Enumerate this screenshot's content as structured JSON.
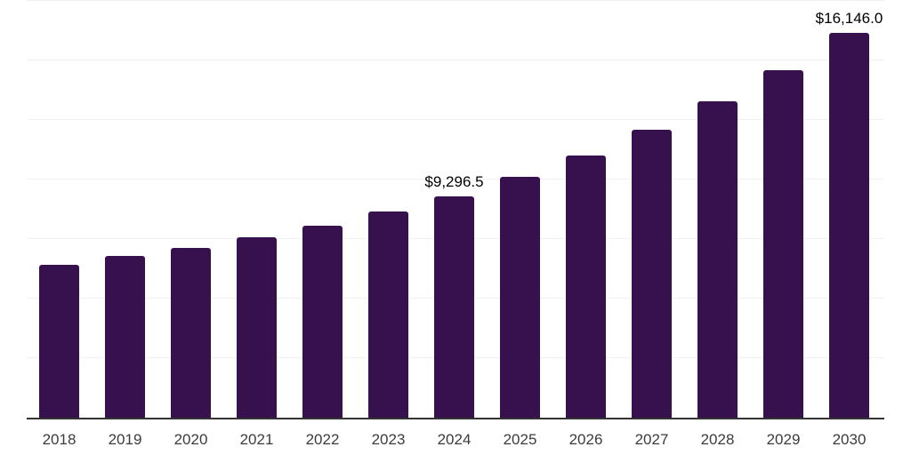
{
  "chart_data": {
    "type": "bar",
    "title": "",
    "xlabel": "",
    "ylabel": "",
    "categories": [
      "2018",
      "2019",
      "2020",
      "2021",
      "2022",
      "2023",
      "2024",
      "2025",
      "2026",
      "2027",
      "2028",
      "2029",
      "2030"
    ],
    "values": [
      6400,
      6800,
      7130,
      7580,
      8060,
      8660,
      9296.5,
      10120,
      11010,
      12090,
      13280,
      14590,
      16146
    ],
    "data_labels": {
      "2024": "$9,296.5",
      "2030": "$16,146.0"
    },
    "ylim": [
      0,
      17500
    ],
    "gridline_step": 2500,
    "grid": true,
    "legend": false,
    "y_axis_labels_visible": false,
    "bar_color": "#36114e",
    "axis_line_color": "#333333",
    "gridline_color": "#f2f2f2",
    "tick_label_color": "#3c3c3c",
    "data_label_color": "#000000"
  }
}
